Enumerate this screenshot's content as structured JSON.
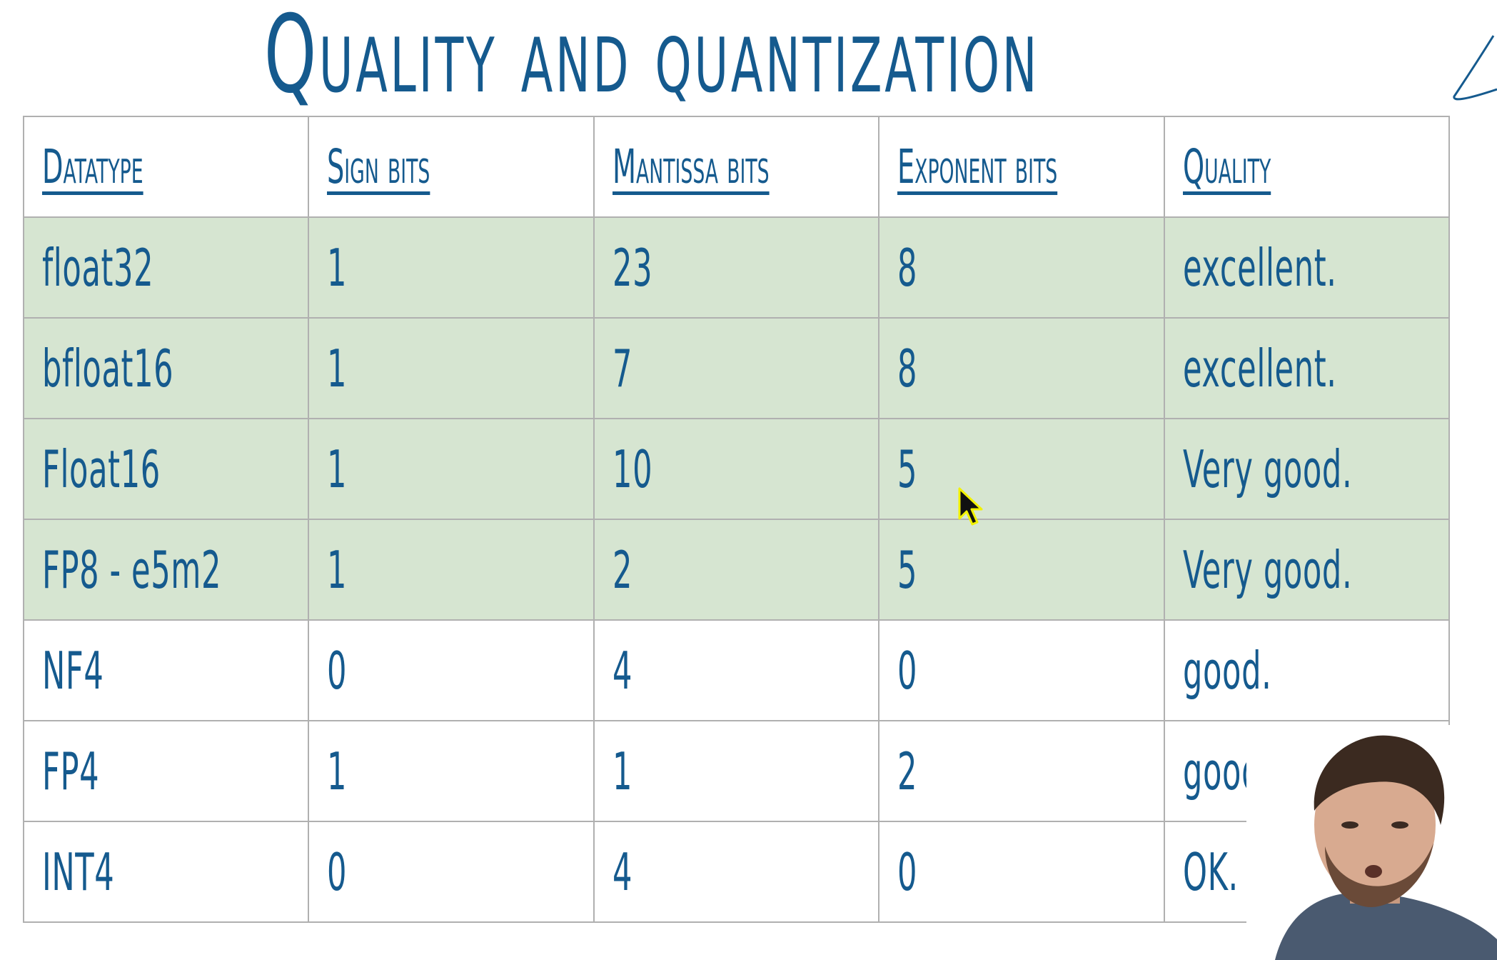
{
  "title": "Quality and quantization",
  "table": {
    "headers": [
      "Datatype",
      "Sign bits",
      "Mantissa bits",
      "Exponent bits",
      "Quality"
    ],
    "rows": [
      {
        "highlight": true,
        "cells": [
          "float32",
          "1",
          "23",
          "8",
          "excellent."
        ]
      },
      {
        "highlight": true,
        "cells": [
          "bfloat16",
          "1",
          "7",
          "8",
          "excellent."
        ]
      },
      {
        "highlight": true,
        "cells": [
          "Float16",
          "1",
          "10",
          "5",
          "Very good."
        ]
      },
      {
        "highlight": true,
        "cells": [
          "FP8 - e5m2",
          "1",
          "2",
          "5",
          "Very good."
        ]
      },
      {
        "highlight": false,
        "cells": [
          "NF4",
          "0",
          "4",
          "0",
          "good."
        ]
      },
      {
        "highlight": false,
        "cells": [
          "FP4",
          "1",
          "1",
          "2",
          "good."
        ]
      },
      {
        "highlight": false,
        "cells": [
          "INT4",
          "0",
          "4",
          "0",
          "OK."
        ]
      }
    ]
  },
  "colors": {
    "text": "#155a8e",
    "highlight_row": "#d6e5d1",
    "border": "#b0b0b0",
    "background": "#ffffff"
  }
}
